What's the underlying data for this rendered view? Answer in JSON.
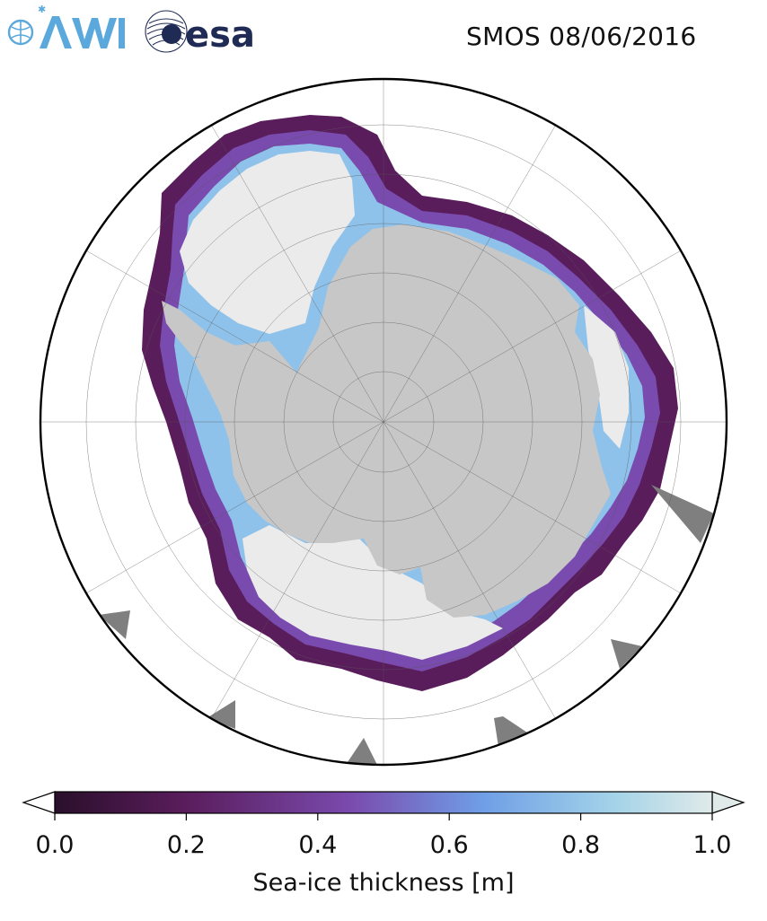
{
  "header": {
    "title": "SMOS 08/06/2016",
    "logos": [
      {
        "name": "AWI",
        "color": "#5aa8dc"
      },
      {
        "name": "esa",
        "color": "#1f2a55"
      }
    ]
  },
  "map": {
    "projection": "south-polar-stereographic",
    "land_color": "#c7c7c7",
    "thick_ice_color": "#ebebeb",
    "missing_color": "#7f7f7f",
    "ocean_color": "#ffffff",
    "graticule": true
  },
  "colorbar": {
    "label": "Sea-ice thickness [m]",
    "min": 0.0,
    "max": 1.0,
    "ticks": [
      "0.0",
      "0.2",
      "0.4",
      "0.6",
      "0.8",
      "1.0"
    ],
    "colors": [
      "#2a0f2b",
      "#5a1d5c",
      "#7a4bae",
      "#6f9ee6",
      "#a3d3e8",
      "#e0eae9"
    ],
    "extend": "both"
  }
}
